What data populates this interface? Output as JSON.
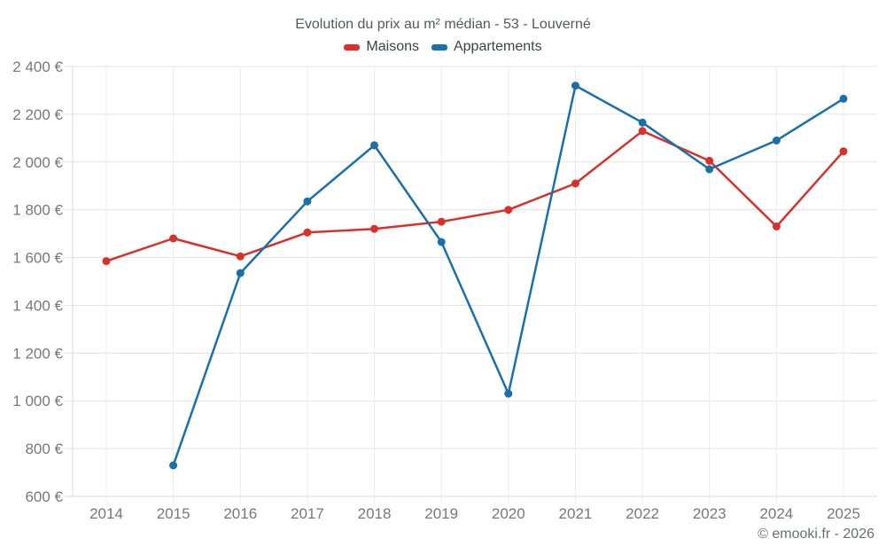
{
  "chart": {
    "footer": "© emooki.fr - 2026"
  },
  "chart_data": {
    "type": "line",
    "title": "Evolution du prix au m² médian - 53 - Louverné",
    "categories": [
      "2014",
      "2015",
      "2016",
      "2017",
      "2018",
      "2019",
      "2020",
      "2021",
      "2022",
      "2023",
      "2024",
      "2025"
    ],
    "series": [
      {
        "name": "Maisons",
        "color": "#d6312c",
        "values": [
          1585,
          1680,
          1605,
          1705,
          1720,
          1750,
          1800,
          1910,
          2130,
          2005,
          1730,
          2045
        ]
      },
      {
        "name": "Appartements",
        "color": "#1b70a8",
        "values": [
          null,
          730,
          1535,
          1835,
          2070,
          1665,
          1030,
          2320,
          2165,
          1970,
          2090,
          2265
        ]
      }
    ],
    "ylim": [
      600,
      2400
    ],
    "y_tick_step": 200,
    "y_ticks": [
      "600 €",
      "800 €",
      "1 000 €",
      "1 200 €",
      "1 400 €",
      "1 600 €",
      "1 800 €",
      "2 000 €",
      "2 200 €",
      "2 400 €"
    ],
    "y_tick_suffix": "€",
    "grid": true,
    "legend_position": "top",
    "marker_radius": 4.5
  }
}
